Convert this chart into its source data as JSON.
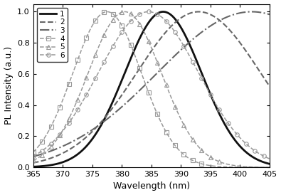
{
  "title": "",
  "xlabel": "Wavelength (nm)",
  "ylabel": "PL Intensity (a.u.)",
  "xlim": [
    365,
    405
  ],
  "ylim": [
    0.0,
    1.05
  ],
  "xticks": [
    365,
    370,
    375,
    380,
    385,
    390,
    395,
    400,
    405
  ],
  "yticks": [
    0.0,
    0.2,
    0.4,
    0.6,
    0.8,
    1.0
  ],
  "curves": [
    {
      "label": "1",
      "peak": 387.0,
      "sigma": 6.5,
      "style": "solid",
      "color": "#111111",
      "marker": null,
      "lw": 2.0
    },
    {
      "label": "2",
      "peak": 393.0,
      "sigma": 10.5,
      "style": "dashed",
      "color": "#666666",
      "marker": null,
      "lw": 1.5
    },
    {
      "label": "3",
      "peak": 402.0,
      "sigma": 16.0,
      "style": "dashdot",
      "color": "#666666",
      "marker": null,
      "lw": 1.5
    },
    {
      "label": "4",
      "peak": 377.5,
      "sigma": 5.8,
      "style": "dashed",
      "color": "#999999",
      "marker": "s",
      "lw": 1.1
    },
    {
      "label": "5",
      "peak": 380.5,
      "sigma": 6.2,
      "style": "dashed",
      "color": "#999999",
      "marker": "^",
      "lw": 1.1
    },
    {
      "label": "6",
      "peak": 384.5,
      "sigma": 8.5,
      "style": "dashed",
      "color": "#999999",
      "marker": "o",
      "lw": 1.1
    }
  ],
  "marker_interval": 1.5,
  "marker_size": 4.0,
  "background_color": "#ffffff",
  "legend_loc": "upper left",
  "legend_fontsize": 7.5,
  "tick_fontsize": 8,
  "label_fontsize": 9
}
